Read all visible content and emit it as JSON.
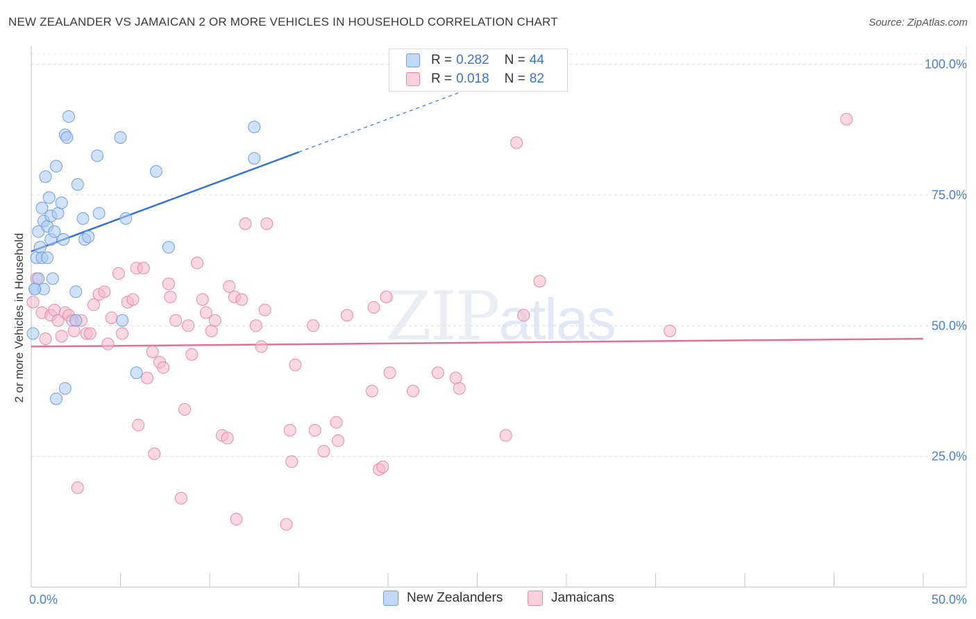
{
  "header": {
    "title": "NEW ZEALANDER VS JAMAICAN 2 OR MORE VEHICLES IN HOUSEHOLD CORRELATION CHART",
    "source": "Source: ZipAtlas.com"
  },
  "watermark": {
    "zip": "ZIP",
    "atlas": "atlas"
  },
  "legend": {
    "rows": [
      {
        "r_label": "R =",
        "r_value": "0.282",
        "n_label": "N =",
        "n_value": "44",
        "color": "#a9c8f2"
      },
      {
        "r_label": "R =",
        "r_value": "0.018",
        "n_label": "N =",
        "n_value": "82",
        "color": "#f6b8cb"
      }
    ]
  },
  "bottom_legend": [
    {
      "label": "New Zealanders",
      "color": "#a9c8f2"
    },
    {
      "label": "Jamaicans",
      "color": "#f6b8cb"
    }
  ],
  "chart_data": {
    "type": "scatter",
    "title": "NEW ZEALANDER VS JAMAICAN 2 OR MORE VEHICLES IN HOUSEHOLD CORRELATION CHART",
    "xlabel": "",
    "ylabel": "2 or more Vehicles in Household",
    "xlim": [
      0,
      50
    ],
    "ylim": [
      0,
      103
    ],
    "x_tick_labels": [
      {
        "value": 0,
        "label": "0.0%"
      },
      {
        "value": 50,
        "label": "50.0%"
      }
    ],
    "y_tick_labels": [
      {
        "value": 25,
        "label": "25.0%"
      },
      {
        "value": 50,
        "label": "50.0%"
      },
      {
        "value": 75,
        "label": "75.0%"
      },
      {
        "value": 100,
        "label": "100.0%"
      }
    ],
    "series": [
      {
        "name": "New Zealanders",
        "color": "#a9c8f2",
        "stroke": "#6f9fe0",
        "line_color": "#3573d3",
        "trend": {
          "x0": 0,
          "y0": 64.2,
          "x1": 15,
          "y1": 83.2,
          "dashed_to_x": 24,
          "dashed_to_y": 94.6
        },
        "points": [
          [
            0.2,
            57.0
          ],
          [
            0.3,
            63.0
          ],
          [
            0.4,
            59.0
          ],
          [
            0.4,
            68.0
          ],
          [
            0.5,
            65.0
          ],
          [
            0.6,
            72.5
          ],
          [
            0.6,
            63.0
          ],
          [
            0.7,
            57.0
          ],
          [
            0.7,
            70.0
          ],
          [
            0.8,
            78.5
          ],
          [
            0.9,
            69.0
          ],
          [
            0.9,
            63.0
          ],
          [
            1.0,
            74.5
          ],
          [
            1.1,
            71.0
          ],
          [
            1.1,
            66.5
          ],
          [
            1.2,
            59.0
          ],
          [
            1.3,
            68.0
          ],
          [
            1.4,
            36.0
          ],
          [
            1.4,
            80.5
          ],
          [
            1.5,
            71.5
          ],
          [
            1.7,
            73.5
          ],
          [
            1.8,
            66.5
          ],
          [
            1.9,
            86.5
          ],
          [
            1.9,
            38.0
          ],
          [
            2.0,
            86.0
          ],
          [
            2.1,
            90.0
          ],
          [
            2.5,
            51.0
          ],
          [
            2.5,
            56.5
          ],
          [
            2.6,
            77.0
          ],
          [
            2.9,
            70.5
          ],
          [
            3.0,
            66.5
          ],
          [
            3.2,
            67.0
          ],
          [
            3.7,
            82.5
          ],
          [
            3.8,
            71.5
          ],
          [
            5.0,
            86.0
          ],
          [
            5.1,
            51.0
          ],
          [
            5.3,
            70.5
          ],
          [
            5.9,
            41.0
          ],
          [
            7.0,
            79.5
          ],
          [
            7.7,
            65.0
          ],
          [
            12.5,
            88.0
          ],
          [
            12.5,
            82.0
          ],
          [
            0.1,
            48.5
          ],
          [
            0.2,
            57.0
          ]
        ]
      },
      {
        "name": "Jamaicans",
        "color": "#f6b8cb",
        "stroke": "#e88aa8",
        "line_color": "#e07098",
        "trend": {
          "x0": 0,
          "y0": 46.0,
          "x1": 50,
          "y1": 47.5
        },
        "points": [
          [
            0.1,
            54.5
          ],
          [
            0.3,
            59.0
          ],
          [
            0.6,
            52.5
          ],
          [
            0.8,
            47.5
          ],
          [
            1.1,
            52.0
          ],
          [
            1.3,
            53.0
          ],
          [
            1.5,
            51.0
          ],
          [
            1.7,
            48.0
          ],
          [
            1.9,
            52.5
          ],
          [
            2.1,
            52.0
          ],
          [
            2.3,
            51.0
          ],
          [
            2.4,
            49.0
          ],
          [
            2.6,
            19.0
          ],
          [
            2.8,
            51.0
          ],
          [
            3.1,
            48.5
          ],
          [
            3.3,
            48.5
          ],
          [
            3.5,
            54.0
          ],
          [
            3.8,
            56.0
          ],
          [
            4.1,
            56.5
          ],
          [
            4.3,
            46.5
          ],
          [
            4.5,
            51.5
          ],
          [
            4.9,
            60.0
          ],
          [
            5.1,
            48.5
          ],
          [
            5.4,
            54.5
          ],
          [
            5.7,
            55.0
          ],
          [
            5.9,
            61.0
          ],
          [
            6.0,
            31.0
          ],
          [
            6.3,
            61.0
          ],
          [
            6.5,
            40.0
          ],
          [
            6.8,
            45.0
          ],
          [
            6.9,
            25.5
          ],
          [
            7.2,
            43.0
          ],
          [
            7.4,
            42.0
          ],
          [
            7.7,
            58.0
          ],
          [
            7.8,
            55.5
          ],
          [
            8.1,
            51.0
          ],
          [
            8.4,
            17.0
          ],
          [
            8.6,
            34.0
          ],
          [
            8.8,
            50.0
          ],
          [
            9.0,
            44.5
          ],
          [
            9.3,
            62.0
          ],
          [
            9.6,
            55.0
          ],
          [
            9.8,
            52.5
          ],
          [
            10.1,
            49.0
          ],
          [
            10.3,
            51.0
          ],
          [
            10.7,
            29.0
          ],
          [
            11.0,
            28.5
          ],
          [
            11.1,
            57.5
          ],
          [
            11.4,
            55.5
          ],
          [
            11.5,
            13.0
          ],
          [
            11.8,
            55.0
          ],
          [
            12.0,
            69.5
          ],
          [
            12.6,
            50.0
          ],
          [
            12.9,
            46.0
          ],
          [
            13.1,
            53.0
          ],
          [
            13.2,
            69.5
          ],
          [
            14.3,
            12.0
          ],
          [
            14.5,
            30.0
          ],
          [
            14.6,
            24.0
          ],
          [
            14.8,
            42.5
          ],
          [
            15.8,
            50.0
          ],
          [
            15.9,
            30.0
          ],
          [
            16.4,
            26.0
          ],
          [
            17.1,
            31.5
          ],
          [
            17.2,
            28.0
          ],
          [
            17.7,
            52.0
          ],
          [
            19.1,
            37.5
          ],
          [
            19.2,
            53.5
          ],
          [
            19.5,
            22.5
          ],
          [
            19.7,
            23.0
          ],
          [
            19.9,
            55.5
          ],
          [
            20.1,
            41.0
          ],
          [
            21.4,
            37.5
          ],
          [
            22.8,
            41.0
          ],
          [
            23.8,
            40.0
          ],
          [
            24.0,
            38.0
          ],
          [
            26.6,
            29.0
          ],
          [
            27.2,
            85.0
          ],
          [
            27.6,
            52.0
          ],
          [
            28.5,
            58.5
          ],
          [
            35.8,
            49.0
          ],
          [
            45.7,
            89.5
          ]
        ]
      }
    ]
  }
}
